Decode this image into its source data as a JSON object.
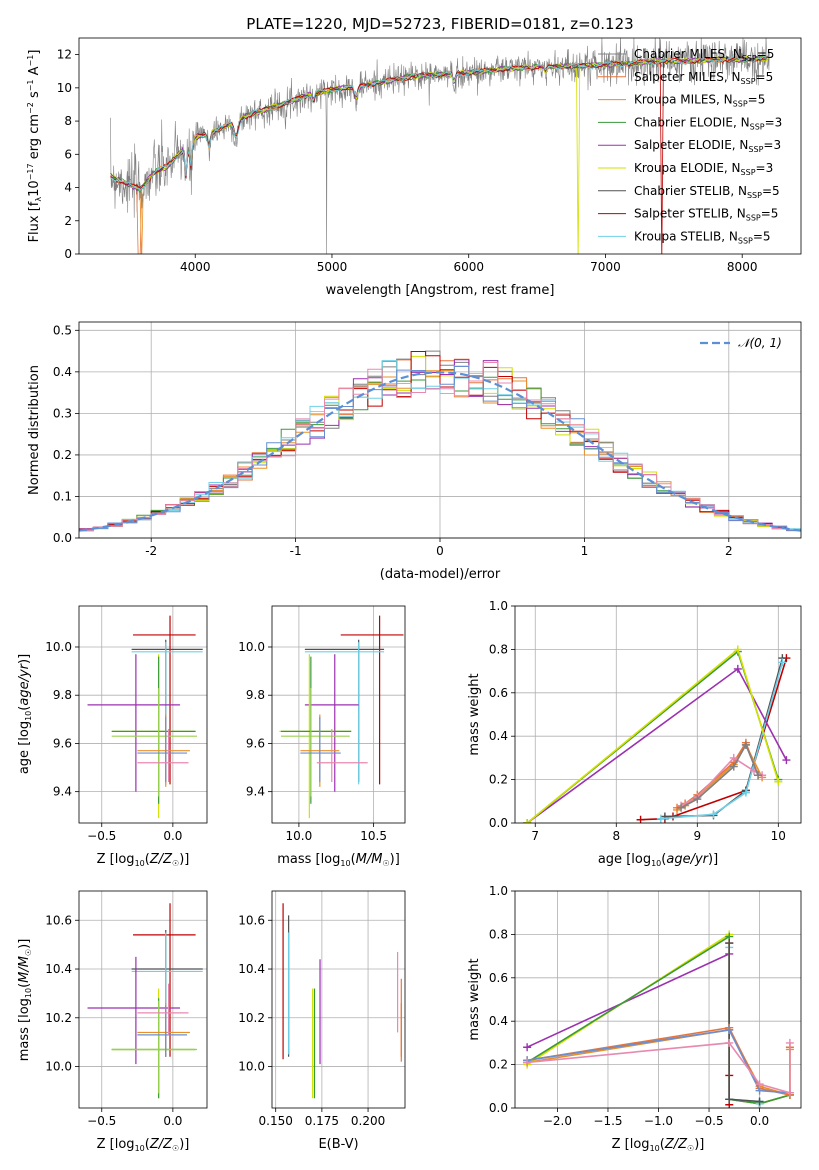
{
  "figure_title": "PLATE=1220, MJD=52723, FIBERID=0181, z=0.123",
  "colors": {
    "Chabrier MILES": "#808080",
    "Salpeter MILES": "#e8743b",
    "Kroupa MILES": "#e8902a",
    "Chabrier ELODIE": "#3a9a3a",
    "Salpeter ELODIE": "#9b30b0",
    "Kroupa ELODIE": "#d4e000",
    "Chabrier STELIB": "#505050",
    "Salpeter STELIB": "#c00000",
    "Kroupa STELIB": "#6fd0e8",
    "extra_1": "#6a8fd0",
    "extra_2": "#e889b0",
    "extra_3": "#9ad050",
    "normal": "#5b8fd6"
  },
  "chart_data": [
    {
      "id": "spectrum",
      "type": "line",
      "title": "PLATE=1220, MJD=52723, FIBERID=0181, z=0.123",
      "xlabel": "wavelength [Angstrom, rest frame]",
      "ylabel": "Flux [f_λ 10^-17 erg cm^-2 s^-1 A^-1]",
      "xlim": [
        3150,
        8430
      ],
      "ylim": [
        0,
        13
      ],
      "xticks": [
        4000,
        5000,
        6000,
        7000,
        8000
      ],
      "yticks": [
        0,
        2,
        4,
        6,
        8,
        10,
        12
      ],
      "legend_position": "top-right",
      "legend": [
        {
          "name": "Chabrier MILES",
          "suffix": "=5"
        },
        {
          "name": "Salpeter MILES",
          "suffix": "=5"
        },
        {
          "name": "Kroupa MILES",
          "suffix": "=5"
        },
        {
          "name": "Chabrier ELODIE",
          "suffix": "=3"
        },
        {
          "name": "Salpeter ELODIE",
          "suffix": "=3"
        },
        {
          "name": "Kroupa ELODIE",
          "suffix": "=3"
        },
        {
          "name": "Chabrier STELIB",
          "suffix": "=5"
        },
        {
          "name": "Salpeter STELIB",
          "suffix": "=5"
        },
        {
          "name": "Kroupa STELIB",
          "suffix": "=5"
        }
      ],
      "continuum_anchor_points": {
        "x": [
          3380,
          3500,
          3600,
          3700,
          3800,
          3900,
          4000,
          4100,
          4200,
          4400,
          4600,
          4800,
          5000,
          5200,
          5400,
          5600,
          5800,
          6000,
          6200,
          6400,
          6600,
          6800,
          7000,
          7200,
          7400,
          7600,
          7800,
          8000,
          8200
        ],
        "y": [
          4.7,
          4.2,
          3.9,
          4.9,
          5.3,
          6.2,
          7.0,
          7.3,
          7.6,
          8.4,
          8.9,
          9.5,
          9.9,
          10.1,
          10.4,
          10.7,
          10.8,
          10.9,
          11.1,
          11.2,
          11.3,
          11.3,
          11.4,
          11.5,
          11.6,
          11.6,
          11.7,
          11.7,
          11.8
        ]
      }
    },
    {
      "id": "residuals",
      "type": "line",
      "xlabel": "(data-model)/error",
      "ylabel": "Normed distribution",
      "xlim": [
        -2.5,
        2.5
      ],
      "ylim": [
        0,
        0.52
      ],
      "xticks": [
        -2,
        -1,
        0,
        1,
        2
      ],
      "yticks": [
        0.0,
        0.1,
        0.2,
        0.3,
        0.4,
        0.5
      ],
      "legend": [
        "𝒩(0, 1)"
      ],
      "legend_position": "top-right",
      "normal_mu": 0,
      "normal_sigma": 1,
      "bin_width": 0.1,
      "observed_max": 0.49
    },
    {
      "id": "z-age",
      "type": "scatter",
      "xlabel": "Z [log10(Z/Z☉)]",
      "ylabel": "age [log10(age/yr)]",
      "xlim": [
        -0.66,
        0.24
      ],
      "ylim": [
        9.27,
        10.17
      ],
      "xticks": [
        -0.5,
        0.0
      ],
      "yticks": [
        9.4,
        9.6,
        9.8,
        10.0
      ],
      "points": [
        {
          "color": "Salpeter STELIB",
          "x": -0.02,
          "xerr": [
            0.26,
            0.18
          ],
          "y": 10.05,
          "yerr": [
            0.62,
            0.08
          ]
        },
        {
          "color": "Chabrier STELIB",
          "x": -0.05,
          "xerr": [
            0.24,
            0.26
          ],
          "y": 9.99,
          "yerr": [
            0.55,
            0.04
          ]
        },
        {
          "color": "Kroupa STELIB",
          "x": -0.05,
          "xerr": [
            0.24,
            0.26
          ],
          "y": 9.98,
          "yerr": [
            0.55,
            0.04
          ]
        },
        {
          "color": "Salpeter ELODIE",
          "x": -0.26,
          "xerr": [
            0.34,
            0.31
          ],
          "y": 9.76,
          "yerr": [
            0.36,
            0.21
          ]
        },
        {
          "color": "Kroupa ELODIE",
          "x": -0.1,
          "xerr": [
            0.33,
            0.25
          ],
          "y": 9.65,
          "yerr": [
            0.36,
            0.32
          ]
        },
        {
          "color": "Chabrier ELODIE",
          "x": -0.1,
          "xerr": [
            0.33,
            0.26
          ],
          "y": 9.65,
          "yerr": [
            0.3,
            0.31
          ]
        },
        {
          "color": "extra_3",
          "x": -0.1,
          "xerr": [
            0.33,
            0.27
          ],
          "y": 9.63,
          "yerr": [
            0.25,
            0.2
          ]
        },
        {
          "color": "Kroupa MILES",
          "x": -0.05,
          "xerr": [
            0.2,
            0.17
          ],
          "y": 9.57,
          "yerr": [
            0.15,
            0.15
          ]
        },
        {
          "color": "extra_1",
          "x": -0.05,
          "xerr": [
            0.2,
            0.15
          ],
          "y": 9.56,
          "yerr": [
            0.12,
            0.15
          ]
        },
        {
          "color": "extra_2",
          "x": -0.03,
          "xerr": [
            0.22,
            0.14
          ],
          "y": 9.52,
          "yerr": [
            0.08,
            0.14
          ]
        }
      ]
    },
    {
      "id": "mass-age",
      "type": "scatter",
      "xlabel": "mass [log10(M/M☉)]",
      "ylabel": "",
      "xlim": [
        9.82,
        10.71
      ],
      "ylim": [
        9.27,
        10.17
      ],
      "xticks": [
        10.0,
        10.5
      ],
      "yticks": [
        9.4,
        9.6,
        9.8,
        10.0
      ],
      "points": [
        {
          "color": "Salpeter STELIB",
          "x": 10.54,
          "xerr": [
            0.26,
            0.16
          ],
          "y": 10.05,
          "yerr": [
            0.62,
            0.08
          ]
        },
        {
          "color": "Chabrier STELIB",
          "x": 10.4,
          "xerr": [
            0.36,
            0.17
          ],
          "y": 9.99,
          "yerr": [
            0.55,
            0.04
          ]
        },
        {
          "color": "Kroupa STELIB",
          "x": 10.4,
          "xerr": [
            0.36,
            0.17
          ],
          "y": 9.98,
          "yerr": [
            0.55,
            0.04
          ]
        },
        {
          "color": "Salpeter ELODIE",
          "x": 10.24,
          "xerr": [
            0.2,
            0.16
          ],
          "y": 9.76,
          "yerr": [
            0.36,
            0.21
          ]
        },
        {
          "color": "Kroupa ELODIE",
          "x": 10.07,
          "xerr": [
            0.2,
            0.28
          ],
          "y": 9.65,
          "yerr": [
            0.36,
            0.32
          ]
        },
        {
          "color": "Chabrier ELODIE",
          "x": 10.08,
          "xerr": [
            0.2,
            0.27
          ],
          "y": 9.65,
          "yerr": [
            0.3,
            0.31
          ]
        },
        {
          "color": "extra_3",
          "x": 10.08,
          "xerr": [
            0.2,
            0.26
          ],
          "y": 9.63,
          "yerr": [
            0.25,
            0.2
          ]
        },
        {
          "color": "Kroupa MILES",
          "x": 10.14,
          "xerr": [
            0.13,
            0.13
          ],
          "y": 9.57,
          "yerr": [
            0.15,
            0.15
          ]
        },
        {
          "color": "extra_1",
          "x": 10.14,
          "xerr": [
            0.13,
            0.14
          ],
          "y": 9.56,
          "yerr": [
            0.12,
            0.15
          ]
        },
        {
          "color": "extra_2",
          "x": 10.22,
          "xerr": [
            0.1,
            0.24
          ],
          "y": 9.52,
          "yerr": [
            0.08,
            0.14
          ]
        }
      ]
    },
    {
      "id": "age-weight",
      "type": "line",
      "xlabel": "age [log10(age/yr)]",
      "ylabel": "mass weight",
      "xlim": [
        6.75,
        10.28
      ],
      "ylim": [
        0,
        1
      ],
      "xticks": [
        7,
        8,
        9,
        10
      ],
      "yticks": [
        0.0,
        0.2,
        0.4,
        0.6,
        0.8,
        1.0
      ],
      "series": [
        {
          "color": "Salpeter STELIB",
          "x": [
            8.3,
            8.6,
            8.7,
            9.6,
            10.1
          ],
          "y": [
            0.015,
            0.02,
            0.03,
            0.15,
            0.76
          ]
        },
        {
          "color": "Chabrier STELIB",
          "x": [
            8.6,
            9.2,
            9.6,
            10.05
          ],
          "y": [
            0.03,
            0.035,
            0.15,
            0.76
          ]
        },
        {
          "color": "Kroupa STELIB",
          "x": [
            8.55,
            9.2,
            9.6,
            10.05
          ],
          "y": [
            0.02,
            0.04,
            0.14,
            0.74
          ]
        },
        {
          "color": "Salpeter ELODIE",
          "x": [
            10.1,
            9.5,
            6.9
          ],
          "y": [
            0.29,
            0.71,
            0.0
          ]
        },
        {
          "color": "Chabrier ELODIE",
          "x": [
            10.0,
            9.5,
            6.9
          ],
          "y": [
            0.2,
            0.79,
            0.0
          ]
        },
        {
          "color": "Kroupa ELODIE",
          "x": [
            10.0,
            9.5,
            6.9
          ],
          "y": [
            0.19,
            0.8,
            0.0
          ]
        },
        {
          "color": "Kroupa MILES",
          "x": [
            8.75,
            8.85,
            9.0,
            9.45,
            9.6,
            9.8
          ],
          "y": [
            0.06,
            0.08,
            0.12,
            0.27,
            0.36,
            0.21
          ]
        },
        {
          "color": "Salpeter MILES",
          "x": [
            8.75,
            8.85,
            9.0,
            9.45,
            9.6,
            9.75
          ],
          "y": [
            0.07,
            0.09,
            0.13,
            0.28,
            0.37,
            0.22
          ]
        },
        {
          "color": "extra_2",
          "x": [
            8.8,
            9.0,
            9.45,
            9.7,
            9.8
          ],
          "y": [
            0.08,
            0.12,
            0.3,
            0.24,
            0.22
          ]
        },
        {
          "color": "Chabrier MILES",
          "x": [
            8.8,
            9.0,
            9.45,
            9.6,
            9.75
          ],
          "y": [
            0.07,
            0.11,
            0.26,
            0.36,
            0.22
          ]
        }
      ]
    },
    {
      "id": "z-mass",
      "type": "scatter",
      "xlabel": "Z [log10(Z/Z☉)]",
      "ylabel": "mass [log10(M/M☉)]",
      "xlim": [
        -0.66,
        0.24
      ],
      "ylim": [
        9.83,
        10.72
      ],
      "xticks": [
        -0.5,
        0.0
      ],
      "yticks": [
        10.0,
        10.2,
        10.4,
        10.6
      ],
      "points": [
        {
          "color": "Salpeter STELIB",
          "x": -0.02,
          "xerr": [
            0.26,
            0.18
          ],
          "y": 10.54,
          "yerr": [
            0.5,
            0.13
          ]
        },
        {
          "color": "Chabrier STELIB",
          "x": -0.05,
          "xerr": [
            0.24,
            0.26
          ],
          "y": 10.4,
          "yerr": [
            0.36,
            0.16
          ]
        },
        {
          "color": "Kroupa STELIB",
          "x": -0.05,
          "xerr": [
            0.24,
            0.26
          ],
          "y": 10.39,
          "yerr": [
            0.34,
            0.16
          ]
        },
        {
          "color": "Salpeter ELODIE",
          "x": -0.26,
          "xerr": [
            0.34,
            0.31
          ],
          "y": 10.24,
          "yerr": [
            0.23,
            0.21
          ]
        },
        {
          "color": "Kroupa ELODIE",
          "x": -0.1,
          "xerr": [
            0.33,
            0.25
          ],
          "y": 10.07,
          "yerr": [
            0.2,
            0.25
          ]
        },
        {
          "color": "Chabrier ELODIE",
          "x": -0.1,
          "xerr": [
            0.33,
            0.26
          ],
          "y": 10.07,
          "yerr": [
            0.2,
            0.21
          ]
        },
        {
          "color": "extra_3",
          "x": -0.1,
          "xerr": [
            0.33,
            0.27
          ],
          "y": 10.07,
          "yerr": [
            0.18,
            0.2
          ]
        },
        {
          "color": "Kroupa MILES",
          "x": -0.05,
          "xerr": [
            0.2,
            0.17
          ],
          "y": 10.14,
          "yerr": [
            0.1,
            0.12
          ]
        },
        {
          "color": "extra_1",
          "x": -0.05,
          "xerr": [
            0.2,
            0.15
          ],
          "y": 10.13,
          "yerr": [
            0.09,
            0.12
          ]
        },
        {
          "color": "extra_2",
          "x": -0.03,
          "xerr": [
            0.22,
            0.14
          ],
          "y": 10.22,
          "yerr": [
            0.09,
            0.12
          ]
        }
      ]
    },
    {
      "id": "ebv-mass",
      "type": "scatter",
      "xlabel": "E(B-V)",
      "ylabel": "",
      "xlim": [
        0.148,
        0.22
      ],
      "ylim": [
        9.83,
        10.72
      ],
      "xticks": [
        0.15,
        0.175,
        0.2
      ],
      "xticklabels": [
        "0.150",
        "0.175",
        "0.200"
      ],
      "yticks": [
        10.0,
        10.2,
        10.4,
        10.6
      ],
      "points": [
        {
          "color": "Salpeter STELIB",
          "x": 0.154,
          "y": 10.53,
          "yerr": [
            0.5,
            0.14
          ]
        },
        {
          "color": "Chabrier STELIB",
          "x": 0.157,
          "y": 10.4,
          "yerr": [
            0.36,
            0.22
          ]
        },
        {
          "color": "Kroupa STELIB",
          "x": 0.157,
          "y": 10.39,
          "yerr": [
            0.34,
            0.16
          ]
        },
        {
          "color": "Kroupa ELODIE",
          "x": 0.17,
          "y": 10.07,
          "yerr": [
            0.2,
            0.25
          ]
        },
        {
          "color": "Chabrier ELODIE",
          "x": 0.171,
          "y": 10.07,
          "yerr": [
            0.2,
            0.25
          ]
        },
        {
          "color": "Salpeter ELODIE",
          "x": 0.174,
          "y": 10.24,
          "yerr": [
            0.23,
            0.2
          ]
        },
        {
          "color": "extra_2",
          "x": 0.216,
          "y": 10.3,
          "yerr": [
            0.16,
            0.17
          ]
        },
        {
          "color": "Kroupa MILES",
          "x": 0.218,
          "y": 10.14,
          "yerr": [
            0.1,
            0.12
          ]
        },
        {
          "color": "Salpeter MILES",
          "x": 0.218,
          "y": 10.18,
          "yerr": [
            0.16,
            0.18
          ]
        }
      ]
    },
    {
      "id": "z-weight",
      "type": "line",
      "xlabel": "Z [log10(Z/Z☉)]",
      "ylabel": "mass weight",
      "xlim": [
        -2.42,
        0.41
      ],
      "ylim": [
        0,
        1
      ],
      "xticks": [
        -2.0,
        -1.5,
        -1.0,
        -0.5,
        0.0
      ],
      "yticks": [
        0.0,
        0.2,
        0.4,
        0.6,
        0.8,
        1.0
      ],
      "series": [
        {
          "color": "Salpeter ELODIE",
          "x": [
            -2.3,
            -0.3,
            -0.3,
            0.0,
            0.3
          ],
          "y": [
            0.28,
            0.71,
            0.04,
            0.02,
            0.06
          ]
        },
        {
          "color": "Kroupa ELODIE",
          "x": [
            -2.3,
            -0.3,
            -0.3,
            0.0,
            0.3
          ],
          "y": [
            0.2,
            0.8,
            0.04,
            0.02,
            0.06
          ]
        },
        {
          "color": "Chabrier ELODIE",
          "x": [
            -2.3,
            -0.3,
            -0.3,
            0.0,
            0.3
          ],
          "y": [
            0.21,
            0.79,
            0.04,
            0.02,
            0.06
          ]
        },
        {
          "color": "Salpeter STELIB",
          "x": [
            -0.3,
            -0.3,
            -0.3
          ],
          "y": [
            0.76,
            0.15,
            0.015
          ]
        },
        {
          "color": "Kroupa STELIB",
          "x": [
            -0.3,
            -0.3,
            0.0,
            0.0
          ],
          "y": [
            0.74,
            0.04,
            0.03,
            0.02
          ]
        },
        {
          "color": "Chabrier STELIB",
          "x": [
            -0.3,
            -0.3,
            0.0
          ],
          "y": [
            0.76,
            0.04,
            0.03
          ]
        },
        {
          "color": "Kroupa MILES",
          "x": [
            -2.3,
            -0.3,
            0.0,
            0.3,
            0.3
          ],
          "y": [
            0.21,
            0.36,
            0.1,
            0.06,
            0.27
          ]
        },
        {
          "color": "Salpeter MILES",
          "x": [
            -2.3,
            -0.3,
            0.0,
            0.3,
            0.3
          ],
          "y": [
            0.22,
            0.37,
            0.09,
            0.06,
            0.28
          ]
        },
        {
          "color": "extra_1",
          "x": [
            -2.3,
            -0.3,
            0.0,
            0.3
          ],
          "y": [
            0.22,
            0.36,
            0.08,
            0.07
          ]
        },
        {
          "color": "extra_2",
          "x": [
            -2.3,
            -0.3,
            0.0,
            0.3,
            0.3
          ],
          "y": [
            0.21,
            0.3,
            0.11,
            0.07,
            0.3
          ]
        }
      ]
    }
  ]
}
